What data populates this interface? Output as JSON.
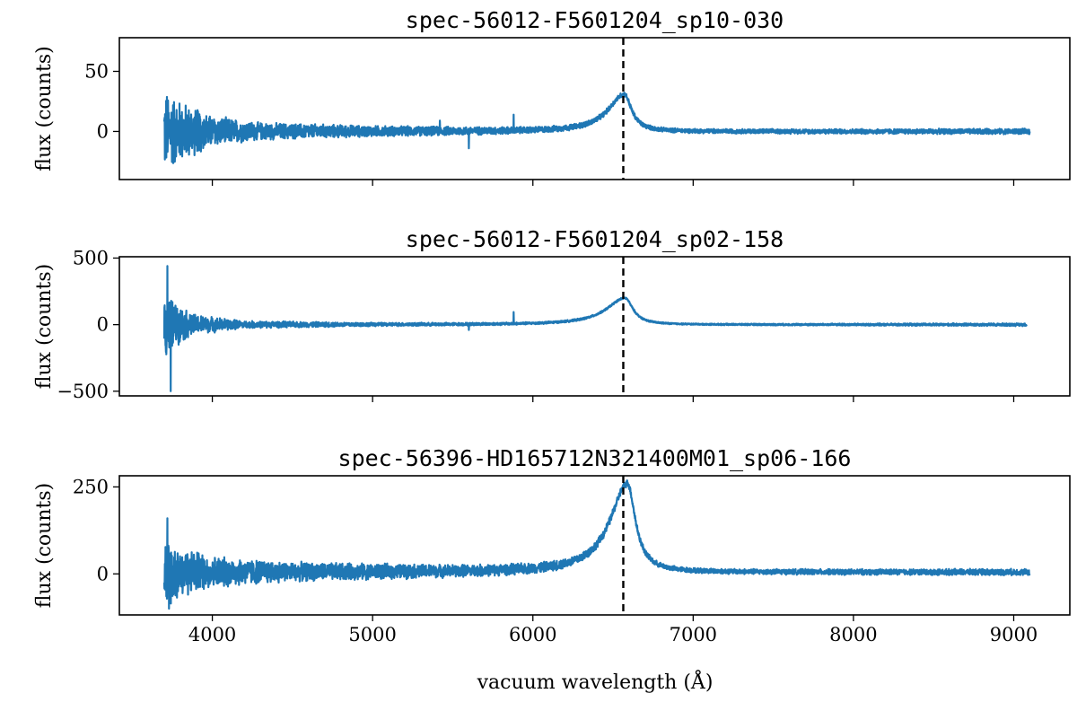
{
  "figure": {
    "xlabel": "vacuum wavelength (Å)",
    "line_color": "#1f77b4",
    "reference_line_wavelength": 6564
  },
  "chart_data": [
    {
      "type": "line",
      "title": "spec-56012-F5601204_sp10-030",
      "xlabel": "vacuum wavelength (Å)",
      "ylabel": "flux (counts)",
      "xlim": [
        3420,
        9350
      ],
      "ylim": [
        -40,
        78
      ],
      "xticks": [
        4000,
        5000,
        6000,
        7000,
        8000,
        9000
      ],
      "xtick_labels": [],
      "yticks": [
        0,
        50
      ],
      "ytick_labels": [
        "0",
        "50"
      ],
      "vline_x": 6564,
      "series": [
        {
          "name": "spectrum",
          "x_range": [
            3700,
            9100
          ],
          "baseline": 0,
          "noise_profile": [
            [
              3700,
              38
            ],
            [
              3800,
              28
            ],
            [
              4000,
              14
            ],
            [
              4300,
              8
            ],
            [
              5000,
              5
            ],
            [
              6000,
              3
            ],
            [
              6800,
              2
            ],
            [
              9000,
              2.5
            ]
          ],
          "peak": {
            "center": 6570,
            "height": 31,
            "width_blue": 120,
            "width_red": 55
          },
          "spikes": [
            [
              5600,
              -14
            ],
            [
              5880,
              14
            ],
            [
              5420,
              9
            ]
          ],
          "end_point": [
            9100,
            0
          ]
        }
      ]
    },
    {
      "type": "line",
      "title": "spec-56012-F5601204_sp02-158",
      "xlabel": "vacuum wavelength (Å)",
      "ylabel": "flux (counts)",
      "xlim": [
        3420,
        9350
      ],
      "ylim": [
        -535,
        510
      ],
      "xticks": [
        4000,
        5000,
        6000,
        7000,
        8000,
        9000
      ],
      "xtick_labels": [],
      "yticks": [
        -500,
        0,
        500
      ],
      "ytick_labels": [
        "−500",
        "0",
        "500"
      ],
      "vline_x": 6564,
      "series": [
        {
          "name": "spectrum",
          "x_range": [
            3700,
            9080
          ],
          "baseline": 0,
          "noise_profile": [
            [
              3700,
              300
            ],
            [
              3780,
              160
            ],
            [
              3900,
              80
            ],
            [
              4200,
              30
            ],
            [
              5000,
              15
            ],
            [
              6000,
              10
            ],
            [
              7000,
              6
            ],
            [
              9000,
              12
            ]
          ],
          "peak": {
            "center": 6575,
            "height": 200,
            "width_blue": 140,
            "width_red": 60
          },
          "spikes": [
            [
              3720,
              440
            ],
            [
              3740,
              -500
            ],
            [
              5880,
              95
            ],
            [
              5600,
              -40
            ]
          ],
          "end_point": [
            9080,
            0
          ]
        }
      ]
    },
    {
      "type": "line",
      "title": "spec-56396-HD165712N321400M01_sp06-166",
      "xlabel": "vacuum wavelength (Å)",
      "ylabel": "flux (counts)",
      "xlim": [
        3420,
        9350
      ],
      "ylim": [
        -118,
        282
      ],
      "xticks": [
        4000,
        5000,
        6000,
        7000,
        8000,
        9000
      ],
      "xtick_labels": [
        "4000",
        "5000",
        "6000",
        "7000",
        "8000",
        "9000"
      ],
      "yticks": [
        0,
        250
      ],
      "ytick_labels": [
        "0",
        "250"
      ],
      "vline_x": 6564,
      "series": [
        {
          "name": "spectrum",
          "x_range": [
            3700,
            9100
          ],
          "baseline": 5,
          "noise_profile": [
            [
              3700,
              110
            ],
            [
              3800,
              80
            ],
            [
              4000,
              50
            ],
            [
              4500,
              30
            ],
            [
              5500,
              20
            ],
            [
              6300,
              15
            ],
            [
              6800,
              8
            ],
            [
              9000,
              10
            ]
          ],
          "peak": {
            "center": 6590,
            "height": 255,
            "width_blue": 130,
            "width_red": 60
          },
          "spikes": [
            [
              3720,
              160
            ],
            [
              3730,
              -100
            ]
          ],
          "end_point": [
            9100,
            0
          ]
        }
      ]
    }
  ]
}
